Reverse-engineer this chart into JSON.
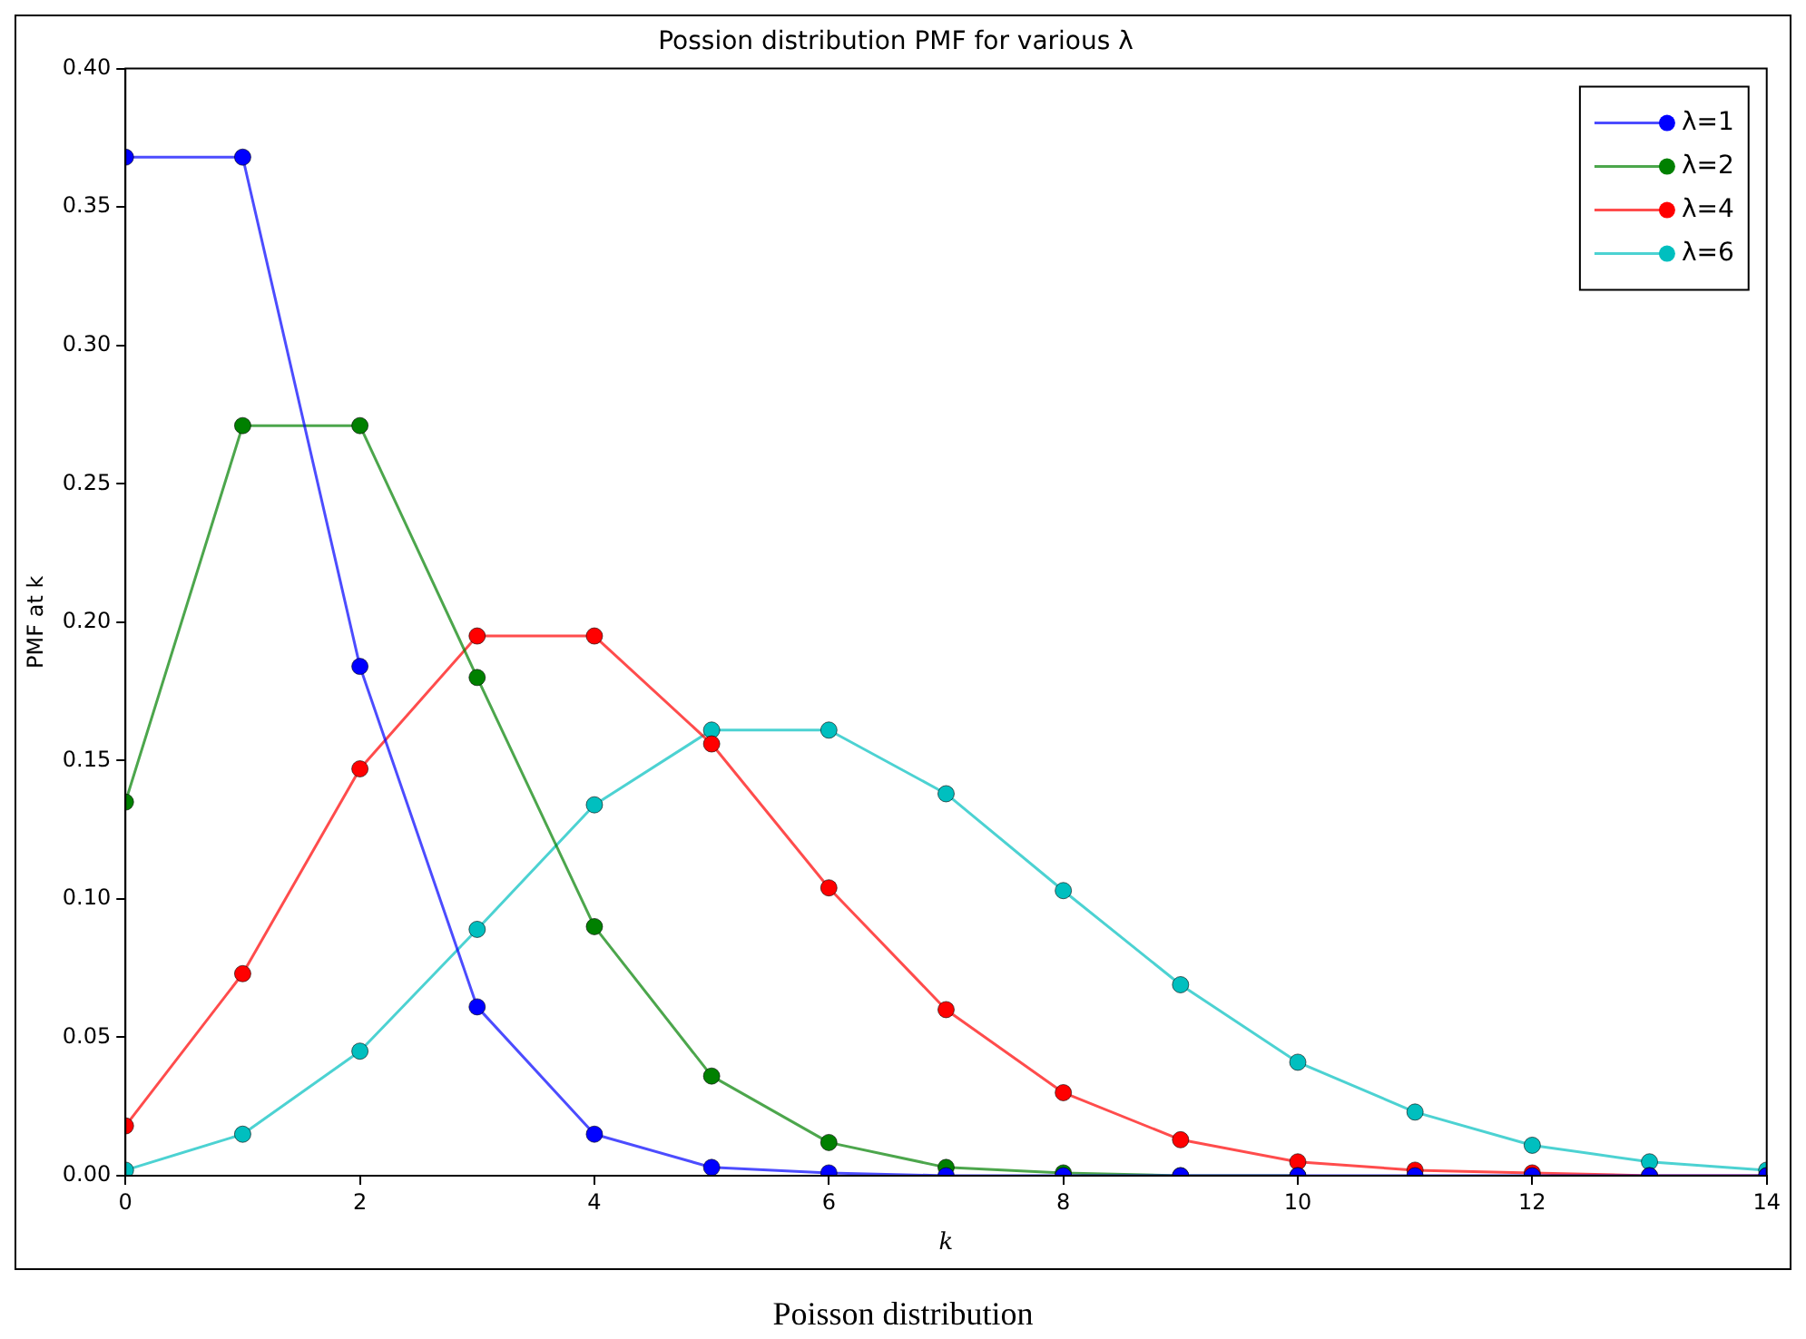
{
  "chart_data": {
    "type": "line",
    "title": "Possion distribution PMF for various λ",
    "xlabel": "k",
    "ylabel": "PMF at k",
    "x": [
      0,
      1,
      2,
      3,
      4,
      5,
      6,
      7,
      8,
      9,
      10,
      11,
      12,
      13,
      14
    ],
    "series": [
      {
        "name": "λ=1",
        "color": "#0000ff",
        "values": [
          0.368,
          0.368,
          0.184,
          0.061,
          0.015,
          0.003,
          0.001,
          0,
          0,
          0,
          0,
          0,
          0,
          0,
          0
        ]
      },
      {
        "name": "λ=2",
        "color": "#008000",
        "values": [
          0.135,
          0.271,
          0.271,
          0.18,
          0.09,
          0.036,
          0.012,
          0.003,
          0.001,
          0,
          0,
          null,
          null,
          null,
          null
        ]
      },
      {
        "name": "λ=4",
        "color": "#ff0000",
        "values": [
          0.018,
          0.073,
          0.147,
          0.195,
          0.195,
          0.156,
          0.104,
          0.06,
          0.03,
          0.013,
          0.005,
          0.002,
          0.001,
          0,
          0
        ]
      },
      {
        "name": "λ=6",
        "color": "#00bfbf",
        "values": [
          0.002,
          0.015,
          0.045,
          0.089,
          0.134,
          0.161,
          0.161,
          0.138,
          0.103,
          0.069,
          0.041,
          0.023,
          0.011,
          0.005,
          0.002
        ]
      }
    ],
    "xlim": [
      0,
      14
    ],
    "xticks": [
      0,
      2,
      4,
      6,
      8,
      10,
      12,
      14
    ],
    "ylim": [
      0,
      0.4
    ],
    "yticks": [
      {
        "value": 0,
        "label": "0.00"
      },
      {
        "value": 0.05,
        "label": "0.05"
      },
      {
        "value": 0.1,
        "label": "0.10"
      },
      {
        "value": 0.15,
        "label": "0.15"
      },
      {
        "value": 0.2,
        "label": "0.20"
      },
      {
        "value": 0.25,
        "label": "0.25"
      },
      {
        "value": 0.3,
        "label": "0.30"
      },
      {
        "value": 0.35,
        "label": "0.35"
      },
      {
        "value": 0.4,
        "label": "0.40"
      }
    ],
    "grid": false,
    "legend": "top right",
    "marker": "circle",
    "line_style": "solid",
    "annotations": [
      "Poisson distribution"
    ]
  }
}
